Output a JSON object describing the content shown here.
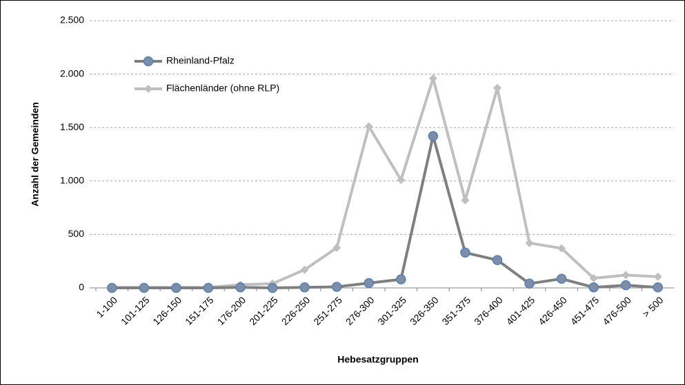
{
  "chart_data": {
    "type": "line",
    "categories": [
      "1-100",
      "101-125",
      "126-150",
      "151-175",
      "176-200",
      "201-225",
      "226-250",
      "251-275",
      "276-300",
      "301-325",
      "326-350",
      "351-375",
      "376-400",
      "401-425",
      "426-450",
      "451-475",
      "476-500",
      "> 500"
    ],
    "series": [
      {
        "name": "Rheinland-Pfalz",
        "color": "#7f7f7f",
        "values": [
          0,
          0,
          0,
          0,
          5,
          0,
          5,
          10,
          45,
          80,
          1420,
          330,
          260,
          40,
          85,
          5,
          25,
          5
        ]
      },
      {
        "name": "Flächenländer (ohne RLP)",
        "color": "#bfbfbf",
        "values": [
          5,
          5,
          5,
          5,
          30,
          40,
          170,
          375,
          1510,
          1010,
          1960,
          820,
          1870,
          420,
          370,
          90,
          120,
          105
        ]
      }
    ],
    "x_label": "Hebesatzgruppen",
    "y_label": "Anzahl der Gemeinden",
    "ylim": [
      0,
      2500
    ],
    "yticks": [
      0,
      500,
      {
        "value": 1000,
        "label": "1.000"
      },
      {
        "value": 1500,
        "label": "1.500"
      },
      {
        "value": 2000,
        "label": "2.000"
      },
      {
        "value": 2500,
        "label": "2.500"
      }
    ],
    "grid": true,
    "legend": "upper left"
  }
}
